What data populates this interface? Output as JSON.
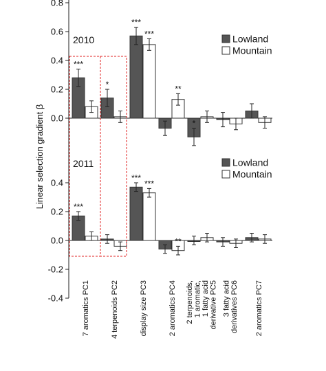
{
  "chart_data": [
    {
      "type": "bar",
      "title": "2010",
      "ylabel": "Linear selection gradient β",
      "ylim": [
        -0.2,
        1.0
      ],
      "yticks": [
        "0.0",
        "0.2",
        "0.4",
        "0.6",
        "0.8",
        "1.0"
      ],
      "categories": [
        "7 aromatics PC1",
        "4 terpenoids PC2",
        "display size PC3",
        "2 aromatics PC4",
        "2 terpenoids, 1 aromatic, 1 fatty acid derivative PC5",
        "3 fatty acid derivatives PC6",
        "2 aromatics PC7"
      ],
      "series": [
        {
          "name": "Lowland",
          "color": "#555555",
          "values": [
            0.28,
            0.14,
            0.57,
            -0.07,
            -0.13,
            -0.01,
            0.05
          ],
          "errors": [
            0.06,
            0.06,
            0.06,
            0.05,
            0.06,
            0.05,
            0.05
          ],
          "significance": [
            "***",
            "*",
            "***",
            "",
            "*",
            "",
            ""
          ]
        },
        {
          "name": "Mountain",
          "color": "#ffffff",
          "values": [
            0.08,
            0.01,
            0.51,
            0.13,
            0.01,
            -0.04,
            -0.03
          ],
          "errors": [
            0.04,
            0.04,
            0.04,
            0.04,
            0.04,
            0.04,
            0.04
          ],
          "significance": [
            "",
            "",
            "***",
            "**",
            "",
            "",
            ""
          ]
        }
      ],
      "legend": "top-right"
    },
    {
      "type": "bar",
      "title": "2011",
      "ylabel": "Linear selection gradient β",
      "ylim": [
        -0.4,
        0.4
      ],
      "yticks": [
        "-0.4",
        "-0.2",
        "0.0",
        "0.2",
        "0.4"
      ],
      "categories": [
        "7 aromatics PC1",
        "4 terpenoids PC2",
        "display size PC3",
        "2 aromatics PC4",
        "2 terpenoids, 1 aromatic, 1 fatty acid derivative PC5",
        "3 fatty acid derivatives PC6",
        "2 aromatics PC7"
      ],
      "series": [
        {
          "name": "Lowland",
          "color": "#555555",
          "values": [
            0.17,
            0.01,
            0.37,
            -0.06,
            0.0,
            -0.01,
            0.02
          ],
          "errors": [
            0.03,
            0.03,
            0.03,
            0.03,
            0.03,
            0.03,
            0.03
          ],
          "significance": [
            "***",
            "",
            "***",
            "",
            "",
            "",
            ""
          ]
        },
        {
          "name": "Mountain",
          "color": "#ffffff",
          "values": [
            0.03,
            -0.04,
            0.33,
            -0.07,
            0.02,
            -0.02,
            0.01
          ],
          "errors": [
            0.03,
            0.03,
            0.03,
            0.03,
            0.03,
            0.03,
            0.03
          ],
          "significance": [
            "",
            "",
            "***",
            "**",
            "",
            "",
            ""
          ]
        }
      ],
      "legend": "top-right"
    }
  ],
  "x_tick_labels": [
    [
      "7 aromatics PC1"
    ],
    [
      "4 terpenoids PC2"
    ],
    [
      "display size PC3"
    ],
    [
      "2 aromatics PC4"
    ],
    [
      "2 terpenoids,",
      "1 aromatic,",
      "1 fatty acid",
      "derivative PC5"
    ],
    [
      "3 fatty acid",
      "derivatives PC6"
    ],
    [
      "2 aromatics PC7"
    ]
  ],
  "highlight_color": "#e02020"
}
